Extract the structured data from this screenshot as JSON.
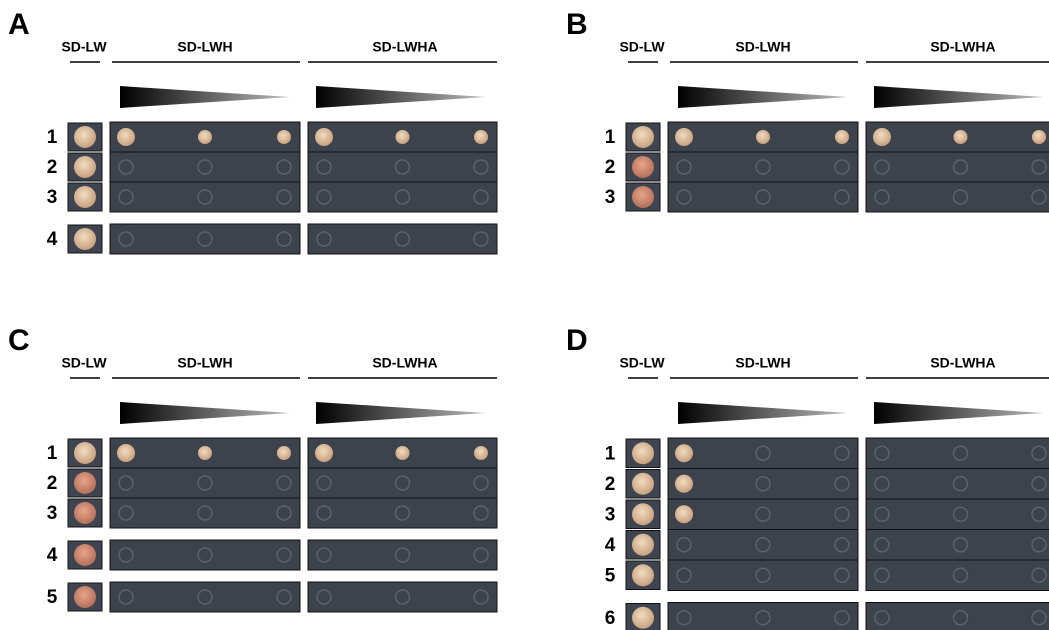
{
  "panels": [
    {
      "label": "A",
      "headers": [
        "SD-LW",
        "SD-LWH",
        "SD-LWHA"
      ],
      "groups": [
        [
          "1",
          "2",
          "3"
        ],
        [
          "4"
        ]
      ]
    },
    {
      "label": "B",
      "headers": [
        "SD-LW",
        "SD-LWH",
        "SD-LWHA"
      ],
      "groups": [
        [
          "1",
          "2",
          "3"
        ]
      ]
    },
    {
      "label": "C",
      "headers": [
        "SD-LW",
        "SD-LWH",
        "SD-LWHA"
      ],
      "groups": [
        [
          "1",
          "2",
          "3"
        ],
        [
          "4"
        ],
        [
          "5"
        ]
      ]
    },
    {
      "label": "D",
      "headers": [
        "SD-LW",
        "SD-LWH",
        "SD-LWHA"
      ],
      "groups": [
        [
          "1",
          "2",
          "3",
          "4",
          "5"
        ],
        [
          "6"
        ]
      ]
    }
  ]
}
